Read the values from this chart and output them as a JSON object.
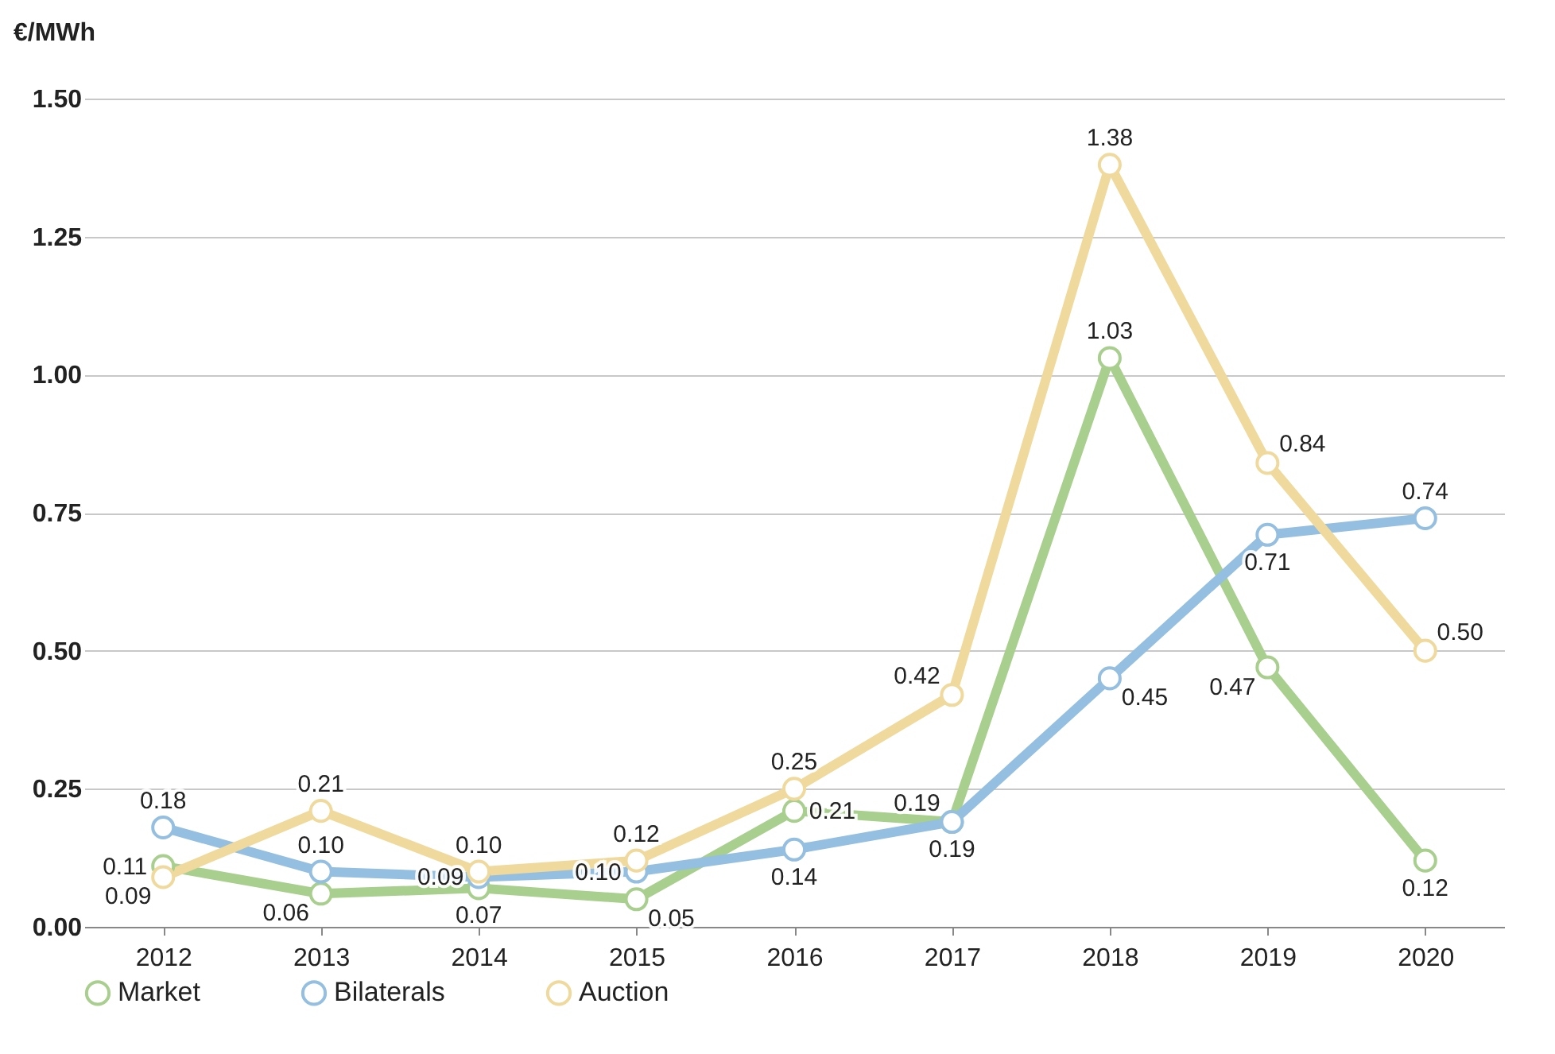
{
  "chart_data": {
    "type": "line",
    "ylabel": "€/MWh",
    "categories": [
      "2012",
      "2013",
      "2014",
      "2015",
      "2016",
      "2017",
      "2018",
      "2019",
      "2020"
    ],
    "series": [
      {
        "name": "Market",
        "color": "#a8cf8e",
        "values": [
          0.11,
          0.06,
          0.07,
          0.05,
          0.21,
          0.19,
          1.03,
          0.47,
          0.12
        ],
        "value_labels": [
          "0.11",
          "0.06",
          "0.07",
          "0.05",
          "0.21",
          "0.19",
          "1.03",
          "0.47",
          "0.12"
        ]
      },
      {
        "name": "Bilaterals",
        "color": "#94bfe0",
        "values": [
          0.18,
          0.1,
          0.09,
          0.1,
          0.14,
          0.19,
          0.45,
          0.71,
          0.74
        ],
        "value_labels": [
          "0.18",
          "0.10",
          "0.09",
          "0.10",
          "0.14",
          "0.19",
          "0.45",
          "0.71",
          "0.74"
        ]
      },
      {
        "name": "Auction",
        "color": "#f0d99c",
        "values": [
          0.09,
          0.21,
          0.1,
          0.12,
          0.25,
          0.42,
          1.38,
          0.84,
          0.5
        ],
        "value_labels": [
          "0.09",
          "0.21",
          "0.10",
          "0.12",
          "0.25",
          "0.42",
          "1.38",
          "0.84",
          "0.50"
        ]
      }
    ],
    "ylim": [
      0,
      1.5
    ],
    "yticks": [
      {
        "value": 0,
        "label": "0.00"
      },
      {
        "value": 0.25,
        "label": "0.25"
      },
      {
        "value": 0.5,
        "label": "0.50"
      },
      {
        "value": 0.75,
        "label": "0.75"
      },
      {
        "value": 1,
        "label": "1.00"
      },
      {
        "value": 1.25,
        "label": "1.25"
      },
      {
        "value": 1.5,
        "label": "1.50"
      }
    ],
    "grid": "y",
    "legend": "bottom left",
    "marker": "circle",
    "line_style": "solid"
  }
}
